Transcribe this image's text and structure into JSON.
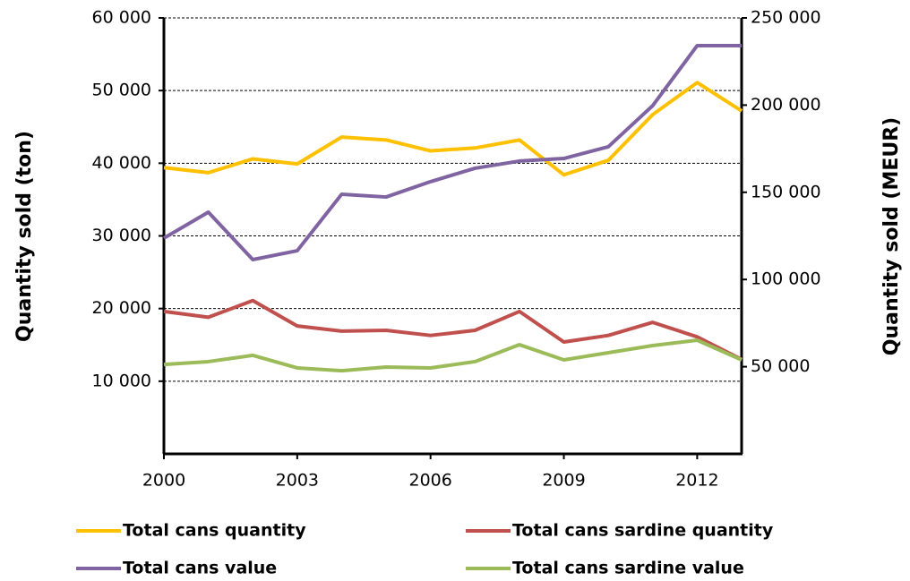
{
  "chart_data": {
    "type": "line",
    "x": [
      2000,
      2001,
      2002,
      2003,
      2004,
      2005,
      2006,
      2007,
      2008,
      2009,
      2010,
      2011,
      2012,
      2013
    ],
    "xlim": [
      2000,
      2013
    ],
    "xticks": [
      2000,
      2003,
      2006,
      2009,
      2012
    ],
    "ylim": [
      0,
      60000
    ],
    "yticks": [
      {
        "value": 10000,
        "label": "10 000"
      },
      {
        "value": 20000,
        "label": "20 000"
      },
      {
        "value": 30000,
        "label": "30 000"
      },
      {
        "value": 40000,
        "label": "40 000"
      },
      {
        "value": 50000,
        "label": "50 000"
      },
      {
        "value": 60000,
        "label": "60 000"
      }
    ],
    "y2lim": [
      0,
      250000
    ],
    "y2ticks": [
      {
        "value": 50000,
        "label": "50 000"
      },
      {
        "value": 100000,
        "label": "100 000"
      },
      {
        "value": 150000,
        "label": "150 000"
      },
      {
        "value": 200000,
        "label": "200 000"
      },
      {
        "value": 250000,
        "label": "250 000"
      }
    ],
    "ylabel": "Quantity sold (ton)",
    "y2label": "Quantity sold (MEUR)",
    "grid": true,
    "series": [
      {
        "name": "Total cans quantity",
        "color": "#FFC000",
        "values": [
          39400,
          38700,
          40600,
          39900,
          43600,
          43200,
          41700,
          42100,
          43200,
          38400,
          40400,
          46700,
          51100,
          47200
        ]
      },
      {
        "name": "Total cans sardine quantity",
        "color": "#C0504D",
        "values": [
          19600,
          18800,
          21100,
          17600,
          16900,
          17000,
          16300,
          17000,
          19600,
          15400,
          16300,
          18100,
          16100,
          13000
        ]
      },
      {
        "name": "Total cans value",
        "color": "#8064A2",
        "axis": "y2",
        "values": [
          123700,
          138600,
          111400,
          116500,
          148900,
          147300,
          156100,
          163800,
          167900,
          169400,
          176100,
          199700,
          234100,
          234100
        ]
      },
      {
        "name": "Total cans sardine value",
        "color": "#9BBB59",
        "axis": "y2",
        "values": [
          51300,
          52900,
          56500,
          49300,
          47700,
          49800,
          49300,
          52900,
          62600,
          53900,
          58000,
          62100,
          65200,
          53900
        ]
      }
    ]
  }
}
